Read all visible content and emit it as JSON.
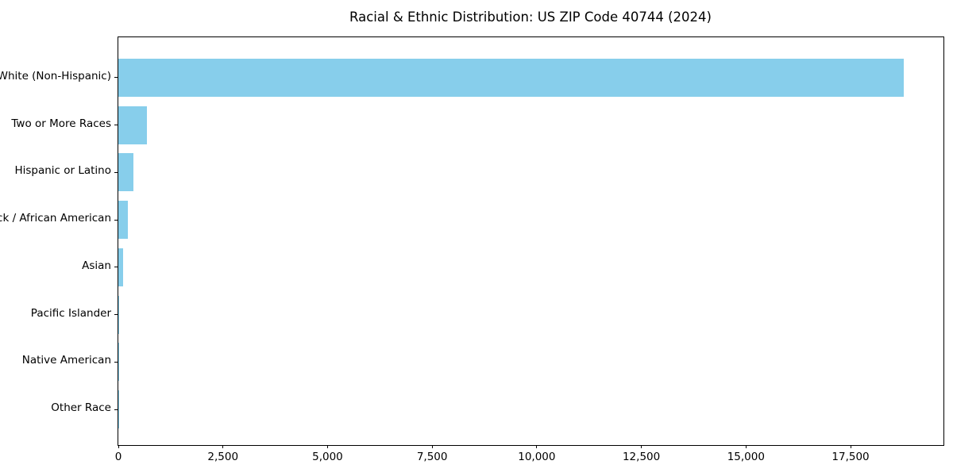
{
  "title": "Racial & Ethnic Distribution: US ZIP Code 40744 (2024)",
  "chart_data": {
    "type": "bar",
    "orientation": "horizontal",
    "title": "Racial & Ethnic Distribution: US ZIP Code 40744 (2024)",
    "xlabel": "",
    "ylabel": "",
    "categories": [
      "White (Non-Hispanic)",
      "Two or More Races",
      "Hispanic or Latino",
      "Black / African American",
      "Asian",
      "Pacific Islander",
      "Native American",
      "Other Race"
    ],
    "values": [
      18770,
      675,
      365,
      230,
      118,
      15,
      10,
      5
    ],
    "xlim": [
      0,
      19720
    ],
    "x_ticks": [
      0,
      2500,
      5000,
      7500,
      10000,
      12500,
      15000,
      17500
    ],
    "x_tick_labels": [
      "0",
      "2,500",
      "5,000",
      "7,500",
      "10,000",
      "12,500",
      "15,000",
      "17,500"
    ],
    "grid": false,
    "legend": null,
    "bar_color": "#87CEEB",
    "spine_color": "#000000",
    "text_color": "#000000",
    "background_color": "#ffffff"
  }
}
